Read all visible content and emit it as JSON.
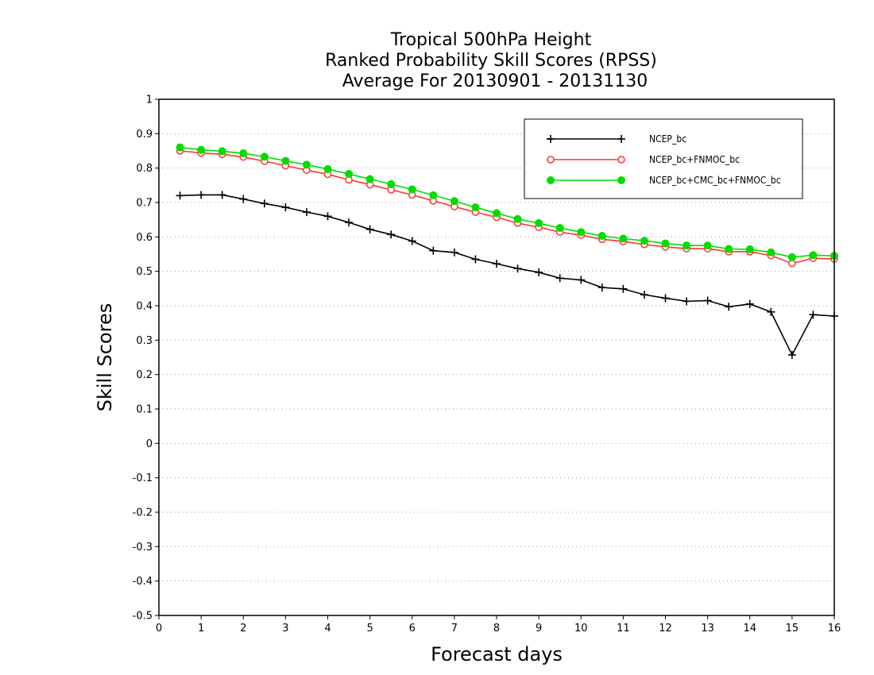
{
  "chart_data": {
    "type": "line",
    "title": [
      "Tropical 500hPa Height",
      "Ranked Probability Skill Scores (RPSS)",
      "Average For 20130901 - 20131130"
    ],
    "xlabel": "Forecast days",
    "ylabel": "Skill Scores",
    "xlim": [
      0,
      16
    ],
    "ylim": [
      -0.5,
      1
    ],
    "xticks": [
      0,
      1,
      2,
      3,
      4,
      5,
      6,
      7,
      8,
      9,
      10,
      11,
      12,
      13,
      14,
      15,
      16
    ],
    "xtick_labels": [
      "0",
      "1",
      "2",
      "3",
      "4",
      "5",
      "6",
      "7",
      "8",
      "9",
      "10",
      "11",
      "12",
      "13",
      "14",
      "15",
      "16"
    ],
    "yticks": [
      -0.5,
      -0.4,
      -0.3,
      -0.2,
      -0.1,
      0,
      0.1,
      0.2,
      0.3,
      0.4,
      0.5,
      0.6,
      0.7,
      0.8,
      0.9,
      1
    ],
    "ytick_labels": [
      "-0.5",
      "-0.4",
      "-0.3",
      "-0.2",
      "-0.1",
      "0",
      "0.1",
      "0.2",
      "0.3",
      "0.4",
      "0.5",
      "0.6",
      "0.7",
      "0.8",
      "0.9",
      "1"
    ],
    "grid": "horizontal dotted",
    "legend_position": "top-right",
    "x": [
      0.5,
      1,
      1.5,
      2,
      2.5,
      3,
      3.5,
      4,
      4.5,
      5,
      5.5,
      6,
      6.5,
      7,
      7.5,
      8,
      8.5,
      9,
      9.5,
      10,
      10.5,
      11,
      11.5,
      12,
      12.5,
      13,
      13.5,
      14,
      14.5,
      15,
      15.5,
      16
    ],
    "series": [
      {
        "name": "NCEP_bc",
        "color": "#000000",
        "marker": "plus",
        "values": [
          0.72,
          0.722,
          0.722,
          0.71,
          0.697,
          0.686,
          0.672,
          0.66,
          0.642,
          0.622,
          0.607,
          0.588,
          0.56,
          0.555,
          0.535,
          0.522,
          0.508,
          0.497,
          0.48,
          0.475,
          0.453,
          0.449,
          0.432,
          0.422,
          0.413,
          0.415,
          0.397,
          0.405,
          0.382,
          0.257,
          0.374,
          0.37
        ]
      },
      {
        "name": "NCEP_bc+FNMOC_bc",
        "color": "#ff3333",
        "marker": "open-circle",
        "values": [
          0.85,
          0.844,
          0.84,
          0.832,
          0.82,
          0.807,
          0.794,
          0.782,
          0.766,
          0.752,
          0.737,
          0.722,
          0.705,
          0.688,
          0.672,
          0.657,
          0.64,
          0.628,
          0.614,
          0.605,
          0.593,
          0.587,
          0.578,
          0.571,
          0.566,
          0.566,
          0.557,
          0.557,
          0.546,
          0.523,
          0.538,
          0.536
        ]
      },
      {
        "name": "NCEP_bc+CMC_bc+FNMOC_bc",
        "color": "#00dd00",
        "marker": "filled-circle",
        "values": [
          0.86,
          0.853,
          0.849,
          0.843,
          0.833,
          0.821,
          0.81,
          0.797,
          0.783,
          0.768,
          0.753,
          0.738,
          0.721,
          0.704,
          0.686,
          0.669,
          0.652,
          0.64,
          0.626,
          0.614,
          0.603,
          0.595,
          0.589,
          0.581,
          0.575,
          0.575,
          0.565,
          0.564,
          0.555,
          0.541,
          0.547,
          0.545
        ]
      }
    ]
  }
}
